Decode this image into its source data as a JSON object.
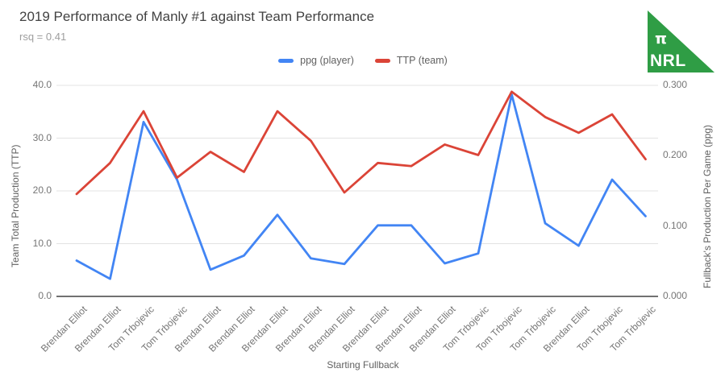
{
  "header": {
    "title": "2019 Performance of Manly #1 against Team Performance",
    "subtitle": "rsq = 0.41"
  },
  "logo": {
    "pi_symbol": "π",
    "text": "NRL",
    "color": "#2f9d45"
  },
  "legend": [
    {
      "label": "ppg (player)",
      "color": "#4285f4"
    },
    {
      "label": "TTP (team)",
      "color": "#db4437"
    }
  ],
  "chart_data": {
    "type": "line",
    "title": "2019 Performance of Manly #1 against Team Performance",
    "subtitle": "rsq = 0.41",
    "xlabel": "Starting Fullback",
    "grid": true,
    "legend_position": "top",
    "categories": [
      "Brendan Elliot",
      "Brendan Elliot",
      "Tom Trbojevic",
      "Tom Trbojevic",
      "Brendan Elliot",
      "Brendan Elliot",
      "Brendan Elliot",
      "Brendan Elliot",
      "Brendan Elliot",
      "Brendan Elliot",
      "Brendan Elliot",
      "Brendan Elliot",
      "Tom Trbojevic",
      "Tom Trbojevic",
      "Tom Trbojevic",
      "Brendan Elliot",
      "Tom Trbojevic",
      "Tom Trbojevic"
    ],
    "series": [
      {
        "name": "ppg (player)",
        "axis": "right",
        "color": "#4285f4",
        "values": [
          0.051,
          0.025,
          0.248,
          0.166,
          0.038,
          0.058,
          0.116,
          0.054,
          0.046,
          0.101,
          0.101,
          0.047,
          0.061,
          0.287,
          0.104,
          0.072,
          0.166,
          0.114
        ]
      },
      {
        "name": "TTP (team)",
        "axis": "left",
        "color": "#db4437",
        "values": [
          19.4,
          25.3,
          35.1,
          22.5,
          27.4,
          23.6,
          35.1,
          29.5,
          19.7,
          25.3,
          24.7,
          28.8,
          26.8,
          38.8,
          34.0,
          31.0,
          34.5,
          26.0
        ]
      }
    ],
    "left_axis": {
      "title": "Team Total Production (TTP)",
      "min": 0,
      "max": 40,
      "ticks": [
        "0.0",
        "10.0",
        "20.0",
        "30.0",
        "40.0"
      ]
    },
    "right_axis": {
      "title": "Fullback's Production Per Game (ppg)",
      "min": 0,
      "max": 0.3,
      "ticks": [
        "0.000",
        "0.100",
        "0.200",
        "0.300"
      ]
    }
  }
}
